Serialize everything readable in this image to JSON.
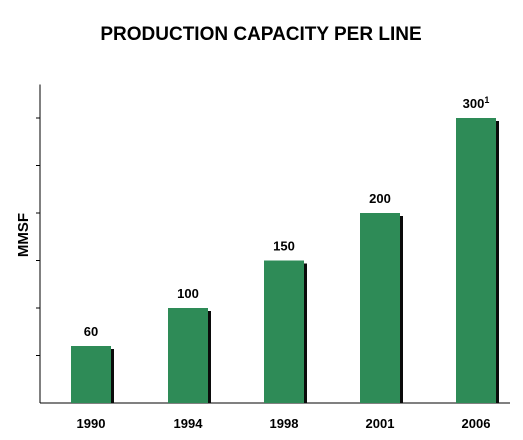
{
  "chart_data": {
    "type": "bar",
    "title": "PRODUCTION CAPACITY PER LINE",
    "xlabel": "",
    "ylabel": "MMSF",
    "categories": [
      "1990",
      "1994",
      "1998",
      "2001",
      "2006"
    ],
    "values": [
      60,
      100,
      150,
      200,
      300
    ],
    "data_labels": [
      "60",
      "100",
      "150",
      "200",
      "300"
    ],
    "data_label_footnotes": [
      "",
      "",
      "",
      "",
      "1"
    ],
    "ylim": [
      0,
      330
    ],
    "ytick_step": 50,
    "show_ytick_labels": false,
    "grid": false,
    "legend": "none",
    "colors": {
      "bar": "#2e8b57",
      "bar_shadow": "#0b0b0b",
      "axis": "#000000"
    }
  }
}
